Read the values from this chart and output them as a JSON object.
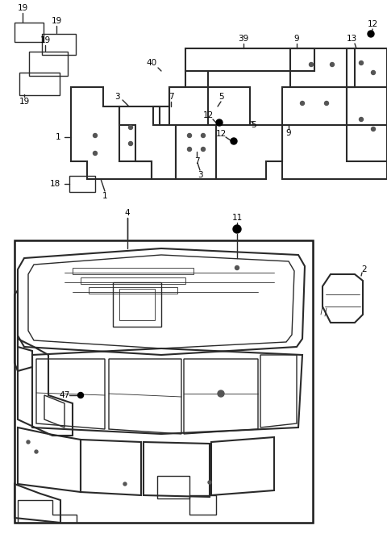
{
  "bg_color": "#ffffff",
  "line_color": "#2a2a2a",
  "text_color": "#000000",
  "fig_width": 4.8,
  "fig_height": 6.67,
  "dpi": 100
}
